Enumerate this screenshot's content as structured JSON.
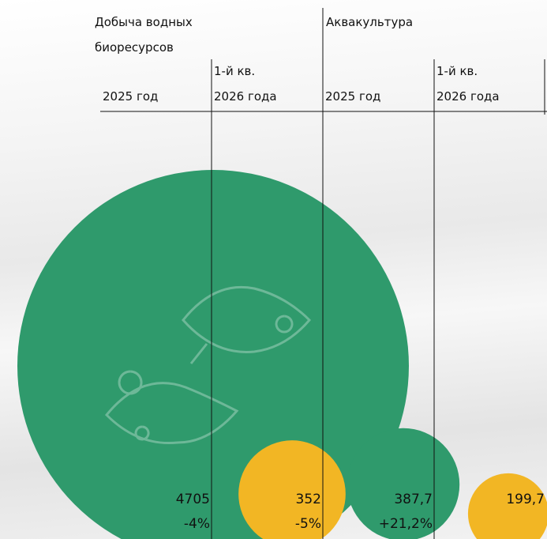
{
  "chart_data": {
    "type": "bubble",
    "groups": [
      "Добыча водных\nбиоресурсов",
      "Аквакультура"
    ],
    "categories": [
      "2025 год",
      "1-й кв.\n2026 года",
      "2025 год",
      "1-й кв.\n2026 года"
    ],
    "values": [
      4705,
      352,
      387.7,
      199.7
    ],
    "value_labels": [
      "4705",
      "352",
      "387,7",
      "199,7"
    ],
    "changes": [
      -4,
      -5,
      21.2,
      null
    ],
    "change_labels": [
      "-4%",
      "-5%",
      "+21,2%",
      null
    ],
    "colors": [
      "#2f9a6c",
      "#f2b624",
      "#2f9a6c",
      "#f2b624"
    ]
  }
}
